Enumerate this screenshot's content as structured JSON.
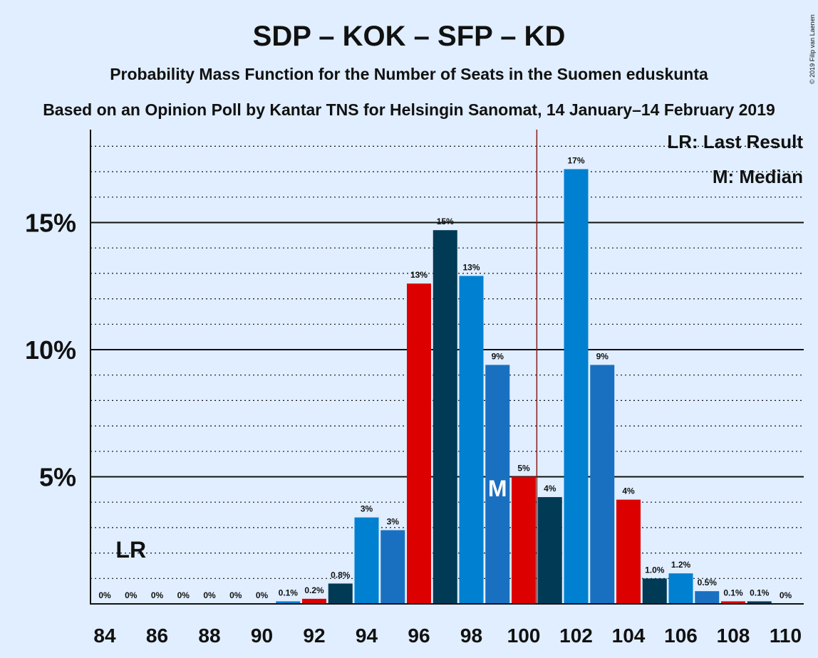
{
  "title": "SDP – KOK – SFP – KD",
  "subtitle": "Probability Mass Function for the Number of Seats in the Suomen eduskunta",
  "source_line": "Based on an Opinion Poll by Kantar TNS for Helsingin Sanomat, 14 January–14 February 2019",
  "copyright": "© 2019 Filip van Laenen",
  "legend": {
    "last_result": "LR: Last Result",
    "median": "M: Median"
  },
  "markers": {
    "last_result_label": "LR",
    "median_label": "M"
  },
  "colors": {
    "background": "#e0eeff",
    "series": [
      "#0080d0",
      "#1a70c0",
      "#dd0000",
      "#003a55"
    ],
    "last_result_line": "#8b1a1a"
  },
  "chart_data": {
    "type": "bar",
    "x": [
      84,
      85,
      86,
      87,
      88,
      89,
      90,
      91,
      92,
      93,
      94,
      95,
      96,
      97,
      98,
      99,
      100,
      101,
      102,
      103,
      104,
      105,
      106,
      107,
      108,
      109,
      110
    ],
    "values": [
      0,
      0,
      0,
      0,
      0,
      0,
      0,
      0.1,
      0.2,
      0.8,
      3.4,
      2.9,
      12.6,
      14.7,
      12.9,
      9.4,
      5.0,
      4.2,
      17.1,
      9.4,
      4.1,
      1.0,
      1.2,
      0.5,
      0.1,
      0.1,
      0
    ],
    "labels": [
      "0%",
      "0%",
      "0%",
      "0%",
      "0%",
      "0%",
      "0%",
      "0.1%",
      "0.2%",
      "0.8%",
      "3%",
      "3%",
      "13%",
      "15%",
      "13%",
      "9%",
      "5%",
      "4%",
      "17%",
      "9%",
      "4%",
      "1.0%",
      "1.2%",
      "0.5%",
      "0.1%",
      "0.1%",
      "0%"
    ],
    "bar_colors": [
      "#0080d0",
      "#1a70c0",
      "#dd0000",
      "#003a55",
      "#0080d0",
      "#1a70c0",
      "#dd0000",
      "#0080d0",
      "#dd0000",
      "#003a55",
      "#0080d0",
      "#1a70c0",
      "#dd0000",
      "#003a55",
      "#0080d0",
      "#1a70c0",
      "#dd0000",
      "#003a55",
      "#0080d0",
      "#1a70c0",
      "#dd0000",
      "#003a55",
      "#0080d0",
      "#1a70c0",
      "#dd0000",
      "#003a55",
      "#0080d0"
    ],
    "x_tick_labels": [
      "84",
      "86",
      "88",
      "90",
      "92",
      "94",
      "96",
      "98",
      "100",
      "102",
      "104",
      "106",
      "108",
      "110"
    ],
    "x_tick_values": [
      84,
      86,
      88,
      90,
      92,
      94,
      96,
      98,
      100,
      102,
      104,
      106,
      108,
      110
    ],
    "y_tick_labels": [
      "5%",
      "10%",
      "15%"
    ],
    "y_tick_values": [
      5,
      10,
      15
    ],
    "ylim": [
      0,
      18.5
    ],
    "minor_grid_step": 1,
    "last_result_seat": 85,
    "median_seat": 99,
    "majority_line_seat": 100.5,
    "legend_position": "top-right"
  }
}
